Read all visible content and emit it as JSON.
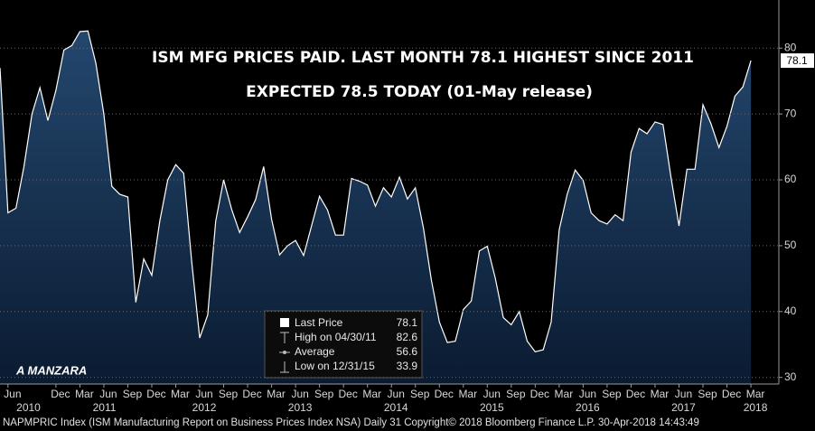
{
  "chart_data": {
    "type": "area",
    "title": "ISM MFG PRICES PAID.  LAST MONTH 78.1 HIGHEST SINCE 2011",
    "subtitle": "EXPECTED 78.5 TODAY (01-May release)",
    "annotation": "A MANZARA",
    "footer": "NAPMPRIC Index (ISM Manufacturing Report on Business Prices Index NSA)  Daily 31  Copyright© 2018 Bloomberg Finance L.P.  30-Apr-2018 14:43:49",
    "color": "#ffffff",
    "fill_top": "#24476e",
    "fill_bottom": "#0a1b31",
    "values": [
      77,
      55,
      55.7,
      62,
      70,
      74,
      69,
      73.6,
      79.7,
      80.4,
      82.5,
      82.6,
      77.7,
      70,
      59,
      57.8,
      57.4,
      41.4,
      48,
      45.5,
      53.7,
      60,
      62.3,
      61,
      47.5,
      36,
      39.5,
      53.7,
      60,
      55.5,
      52,
      54.4,
      57,
      62,
      54,
      48.6,
      50,
      50.8,
      48.5,
      53,
      57.5,
      55.4,
      51.6,
      51.6,
      60.2,
      59.8,
      59.2,
      56,
      58.8,
      57.4,
      60.4,
      57.1,
      58.8,
      52.7,
      44.8,
      38.4,
      35.3,
      35.5,
      40.3,
      41.6,
      49.2,
      49.9,
      45.1,
      39.1,
      38,
      40,
      35.5,
      33.9,
      34.2,
      38.4,
      52.4,
      57.8,
      61.5,
      59.9,
      55,
      53.8,
      53.3,
      54.7,
      53.8,
      64.2,
      67.8,
      67,
      68.8,
      68.4,
      60.4,
      53,
      61.6,
      61.6,
      71.4,
      68.5,
      64.9,
      68.1,
      72.7,
      74.1,
      78.1
    ],
    "xlim": [
      0,
      97.5
    ],
    "ylim": [
      29,
      87.3
    ],
    "yticks": [
      30,
      40,
      50,
      60,
      70,
      80
    ],
    "grid": true,
    "xticks": [
      {
        "value": 1,
        "label": "Jun"
      },
      {
        "value": 7,
        "label": "Dec"
      },
      {
        "value": 10,
        "label": "Mar"
      },
      {
        "value": 13,
        "label": "Jun"
      },
      {
        "value": 16,
        "label": "Sep"
      },
      {
        "value": 19,
        "label": "Dec"
      },
      {
        "value": 22,
        "label": "Mar"
      },
      {
        "value": 25,
        "label": "Jun"
      },
      {
        "value": 28,
        "label": "Sep"
      },
      {
        "value": 31,
        "label": "Dec"
      },
      {
        "value": 34,
        "label": "Mar"
      },
      {
        "value": 37,
        "label": "Jun"
      },
      {
        "value": 40,
        "label": "Sep"
      },
      {
        "value": 43,
        "label": "Dec"
      },
      {
        "value": 46,
        "label": "Mar"
      },
      {
        "value": 49,
        "label": "Jun"
      },
      {
        "value": 52,
        "label": "Sep"
      },
      {
        "value": 55,
        "label": "Dec"
      },
      {
        "value": 58,
        "label": "Mar"
      },
      {
        "value": 61,
        "label": "Jun"
      },
      {
        "value": 64,
        "label": "Sep"
      },
      {
        "value": 67,
        "label": "Dec"
      },
      {
        "value": 70,
        "label": "Mar"
      },
      {
        "value": 73,
        "label": "Jun"
      },
      {
        "value": 76,
        "label": "Sep"
      },
      {
        "value": 79,
        "label": "Dec"
      },
      {
        "value": 82,
        "label": "Mar"
      },
      {
        "value": 85,
        "label": "Jun"
      },
      {
        "value": 88,
        "label": "Sep"
      },
      {
        "value": 91,
        "label": "Dec"
      },
      {
        "value": 94,
        "label": "Mar"
      }
    ],
    "year_labels": [
      {
        "value": 3,
        "label": "2010"
      },
      {
        "value": 12.5,
        "label": "2011"
      },
      {
        "value": 25,
        "label": "2012"
      },
      {
        "value": 37,
        "label": "2013"
      },
      {
        "value": 49,
        "label": "2014"
      },
      {
        "value": 61,
        "label": "2015"
      },
      {
        "value": 73,
        "label": "2016"
      },
      {
        "value": 85,
        "label": "2017"
      },
      {
        "value": 94,
        "label": "2018"
      }
    ],
    "legend": [
      {
        "label": "Last Price",
        "value": 78.1
      },
      {
        "label": "High on 04/30/11",
        "value": 82.6
      },
      {
        "label": "Average",
        "value": 56.6
      },
      {
        "label": "Low on 12/31/15",
        "value": 33.9
      }
    ]
  }
}
